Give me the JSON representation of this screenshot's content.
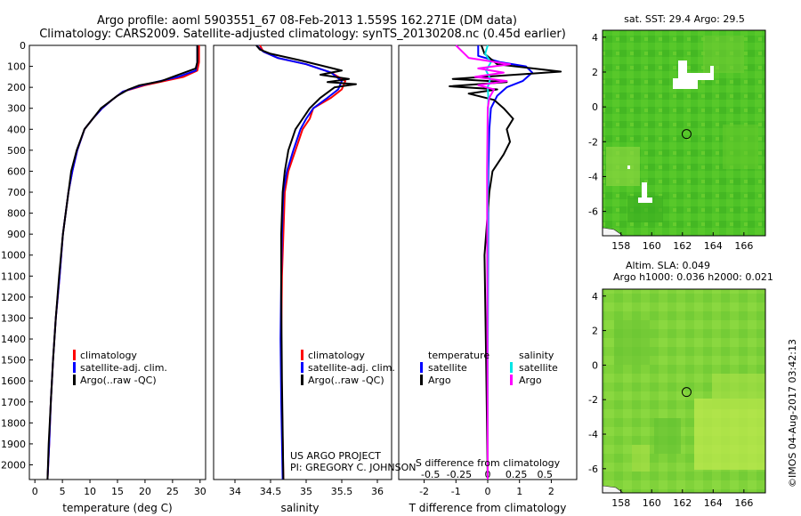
{
  "title_line1": "Argo profile: aoml 5903551_67 08-Feb-2013 1.559S 162.271E (DM data)",
  "title_line2": "Climatology: CARS2009. Satellite-adjusted climatology: synTS_20130208.nc (0.45d earlier)",
  "credit": "US ARGO PROJECT",
  "pi": "PI: GREGORY C. JOHNSON",
  "stamp": "©IMOS 04-Aug-2017 03:42:13",
  "map_top_title": "sat. SST: 29.4 Argo: 29.5",
  "map_bottom_title1": "Altim. SLA: 0.049",
  "map_bottom_title2": "Argo h1000: 0.036 h2000: 0.021",
  "colors": {
    "climatology": "#ff0000",
    "satellite": "#0000ff",
    "argo": "#000000",
    "sal_satellite": "#00e5e5",
    "sal_argo": "#ff00ff"
  },
  "chart_data": [
    {
      "type": "line",
      "id": "temperature",
      "xlabel": "temperature (deg C)",
      "ylabel": "",
      "xlim": [
        -1,
        31
      ],
      "ylim": [
        2070,
        0
      ],
      "xticks": [
        0,
        5,
        10,
        15,
        20,
        25,
        30
      ],
      "yticks": [
        0,
        100,
        200,
        300,
        400,
        500,
        600,
        700,
        800,
        900,
        1000,
        1100,
        1200,
        1300,
        1400,
        1500,
        1600,
        1700,
        1800,
        1900,
        2000
      ],
      "legend": [
        "climatology",
        "satellite-adj. clim.",
        "Argo(..raw -QC)"
      ],
      "series": [
        {
          "name": "climatology",
          "x": [
            29.8,
            29.8,
            29.5,
            27,
            20,
            16,
            14,
            12.2,
            10.5,
            9,
            7.7,
            6.8,
            6.1,
            5.1,
            4.5,
            3.8,
            3.3,
            2.9,
            2.6,
            2.3
          ],
          "y": [
            0,
            80,
            120,
            150,
            190,
            220,
            260,
            300,
            350,
            400,
            500,
            600,
            700,
            900,
            1100,
            1300,
            1500,
            1700,
            1900,
            2070
          ]
        },
        {
          "name": "satellite-adj. clim.",
          "x": [
            29.5,
            29.5,
            29.2,
            26,
            19.5,
            16,
            14,
            12.2,
            10.5,
            9,
            7.7,
            6.8,
            6.1,
            5.1,
            4.5,
            3.8,
            3.3,
            2.9,
            2.6,
            2.3
          ],
          "y": [
            0,
            80,
            120,
            150,
            190,
            220,
            260,
            300,
            350,
            400,
            500,
            600,
            700,
            900,
            1100,
            1300,
            1500,
            1700,
            1900,
            2070
          ]
        },
        {
          "name": "Argo(..raw -QC)",
          "x": [
            29.5,
            29.5,
            29.2,
            25,
            23,
            19,
            17,
            15,
            13.5,
            12,
            10.5,
            9,
            7.6,
            6.6,
            5.1,
            4.4,
            3.8,
            3.3,
            2.9,
            2.5,
            2.3
          ],
          "y": [
            0,
            80,
            110,
            150,
            170,
            190,
            210,
            240,
            270,
            300,
            350,
            400,
            500,
            600,
            900,
            1100,
            1300,
            1500,
            1700,
            1900,
            2070
          ]
        }
      ]
    },
    {
      "type": "line",
      "id": "salinity",
      "xlabel": "salinity",
      "xlim": [
        33.7,
        36.2
      ],
      "ylim": [
        2070,
        0
      ],
      "xticks": [
        34,
        34.5,
        35,
        35.5,
        36
      ],
      "legend": [
        "climatology",
        "satellite-adj. clim.",
        "Argo(..raw -QC)"
      ],
      "series": [
        {
          "name": "climatology",
          "x": [
            34.35,
            34.4,
            34.6,
            35.0,
            35.35,
            35.55,
            35.5,
            35.35,
            35.1,
            35.05,
            34.95,
            34.85,
            34.75,
            34.7,
            34.68,
            34.66,
            34.65,
            34.66,
            34.68
          ],
          "y": [
            0,
            30,
            60,
            90,
            130,
            170,
            210,
            250,
            300,
            350,
            400,
            500,
            600,
            700,
            900,
            1100,
            1400,
            1700,
            2070
          ]
        },
        {
          "name": "satellite-adj. clim.",
          "x": [
            34.3,
            34.4,
            34.6,
            35.0,
            35.35,
            35.5,
            35.45,
            35.3,
            35.1,
            35.0,
            34.92,
            34.82,
            34.73,
            34.68,
            34.66,
            34.65,
            34.64,
            34.65,
            34.67
          ],
          "y": [
            0,
            30,
            60,
            90,
            130,
            170,
            210,
            250,
            300,
            350,
            400,
            500,
            600,
            700,
            900,
            1100,
            1400,
            1700,
            2070
          ]
        },
        {
          "name": "Argo(..raw -QC)",
          "x": [
            34.3,
            34.35,
            34.5,
            34.9,
            35.5,
            35.2,
            35.6,
            35.3,
            35.7,
            35.4,
            35.2,
            35.05,
            34.95,
            34.85,
            34.75,
            34.7,
            34.67,
            34.65,
            34.65,
            34.66,
            34.68
          ],
          "y": [
            0,
            20,
            40,
            70,
            120,
            140,
            160,
            175,
            185,
            200,
            250,
            300,
            350,
            400,
            500,
            600,
            700,
            900,
            1200,
            1600,
            2070
          ]
        }
      ]
    },
    {
      "type": "line",
      "id": "differences",
      "xlabel": "T difference from climatology",
      "xlabel_top": "S difference from climatology",
      "xlim": [
        -2.8,
        2.8
      ],
      "ylim": [
        2070,
        0
      ],
      "xticks": [
        -2,
        -1,
        0,
        1,
        2
      ],
      "xticklabels_top": [
        "-0.5",
        "-0.25",
        "0",
        "0.25",
        "0.5"
      ],
      "legend_temperature_title": "temperature",
      "legend_salinity_title": "salinity",
      "legend": [
        "satellite",
        "Argo",
        "satellite",
        "Argo"
      ],
      "series": [
        {
          "name": "T satellite",
          "x": [
            -0.3,
            -0.3,
            0.4,
            1.2,
            1.4,
            1.1,
            0.6,
            0.3,
            0.1,
            0.05,
            0.02,
            0.01,
            0,
            0
          ],
          "y": [
            0,
            50,
            80,
            100,
            130,
            170,
            200,
            240,
            300,
            400,
            600,
            1000,
            1500,
            2070
          ]
        },
        {
          "name": "T Argo",
          "x": [
            -0.2,
            -0.1,
            0.3,
            2.3,
            -1.1,
            0.6,
            -1.2,
            0.3,
            -0.6,
            0.2,
            0.5,
            0.8,
            0.6,
            0.7,
            0.5,
            0.15,
            0.05,
            -0.1,
            -0.05,
            0
          ],
          "y": [
            0,
            40,
            90,
            125,
            160,
            175,
            195,
            210,
            230,
            260,
            300,
            350,
            400,
            460,
            520,
            600,
            700,
            1000,
            1500,
            2070
          ]
        },
        {
          "name": "S satellite",
          "x": [
            0,
            -0.08,
            0.1,
            -0.05,
            0.08,
            0,
            0.02,
            0,
            0
          ],
          "y": [
            0,
            40,
            80,
            120,
            160,
            200,
            250,
            400,
            2070
          ]
        },
        {
          "name": "S Argo",
          "x": [
            -1.0,
            -0.6,
            0.7,
            -0.3,
            0.5,
            -0.4,
            0.6,
            -0.3,
            0.2,
            0.05,
            0,
            -0.02,
            0
          ],
          "y": [
            0,
            60,
            90,
            110,
            130,
            150,
            170,
            190,
            210,
            250,
            300,
            600,
            2070
          ]
        }
      ]
    },
    {
      "type": "heatmap",
      "id": "sst-map",
      "title": "sat. SST: 29.4 Argo: 29.5",
      "xlim": [
        156.8,
        167.4
      ],
      "ylim": [
        -7.4,
        4.4
      ],
      "xticks": [
        158,
        160,
        162,
        164,
        166
      ],
      "yticks": [
        4,
        2,
        0,
        -2,
        -4,
        -6
      ],
      "marker": {
        "lon": 162.271,
        "lat": -1.559
      }
    },
    {
      "type": "heatmap",
      "id": "sla-map",
      "title": "Altim. SLA: 0.049",
      "xlim": [
        156.8,
        167.4
      ],
      "ylim": [
        -7.4,
        4.4
      ],
      "xticks": [
        158,
        160,
        162,
        164,
        166
      ],
      "yticks": [
        4,
        2,
        0,
        -2,
        -4,
        -6
      ],
      "marker": {
        "lon": 162.271,
        "lat": -1.559
      }
    }
  ]
}
